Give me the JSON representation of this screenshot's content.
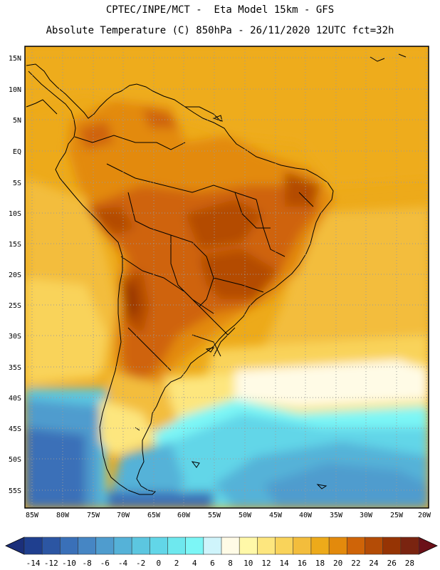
{
  "header": {
    "line1": "CPTEC/INPE/MCT -  Eta Model 15km - GFS",
    "line2": "Absolute Temperature (C) 850hPa - 26/11/2020 12UTC fct=32h"
  },
  "axes": {
    "lat_labels": [
      "15N",
      "10N",
      "5N",
      "EQ",
      "5S",
      "10S",
      "15S",
      "20S",
      "25S",
      "30S",
      "35S",
      "40S",
      "45S",
      "50S",
      "55S"
    ],
    "lon_labels": [
      "85W",
      "80W",
      "75W",
      "70W",
      "65W",
      "60W",
      "55W",
      "50W",
      "45W",
      "40W",
      "35W",
      "30W",
      "25W",
      "20W"
    ]
  },
  "colorbar": {
    "labels": [
      "-14",
      "-12",
      "-10",
      "-8",
      "-6",
      "-4",
      "-2",
      "0",
      "2",
      "4",
      "6",
      "8",
      "10",
      "12",
      "14",
      "16",
      "18",
      "20",
      "22",
      "24",
      "26",
      "28"
    ],
    "colors": [
      "#1f3f8f",
      "#2c56a3",
      "#3a70b8",
      "#4686c4",
      "#4f9cce",
      "#55b2d8",
      "#5cc6e0",
      "#62d6e8",
      "#6ee8ee",
      "#7cf6f6",
      "#cff4fb",
      "#fffbe6",
      "#fff8a8",
      "#fde67e",
      "#f9d35a",
      "#f3bd3c",
      "#edaa1a",
      "#e38a0c",
      "#cf6408",
      "#b44c06",
      "#963404",
      "#7a2410"
    ],
    "left_color": "#1b2f7a",
    "right_color": "#6b1018"
  }
}
